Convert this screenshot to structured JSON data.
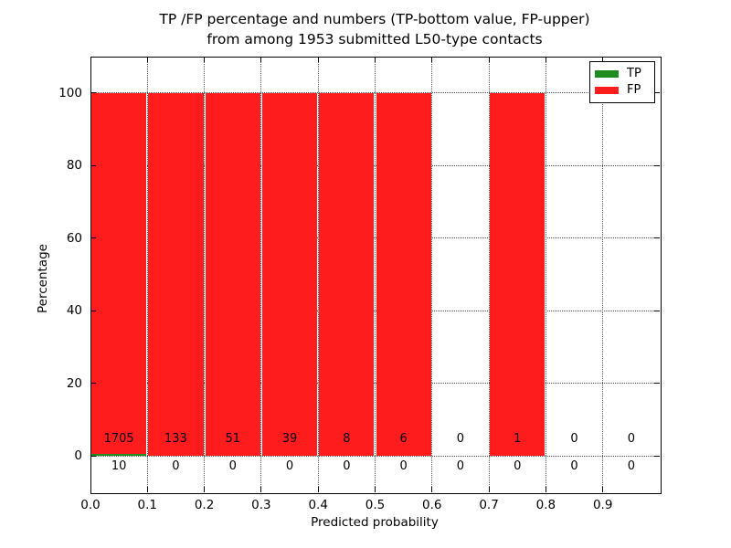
{
  "chart_data": {
    "type": "bar",
    "title_line1": "TP /FP percentage and numbers (TP-bottom value, FP-upper)",
    "title_line2": "from among 1953 submitted L50-type contacts",
    "xlabel": "Predicted probability",
    "ylabel": "Percentage",
    "xlim": [
      0.0,
      1.0
    ],
    "ylim": [
      -10,
      110
    ],
    "xtick_labels": [
      "0.0",
      "0.1",
      "0.2",
      "0.3",
      "0.4",
      "0.5",
      "0.6",
      "0.7",
      "0.8",
      "0.9"
    ],
    "ytick_values": [
      0,
      20,
      40,
      60,
      80,
      100
    ],
    "grid": "dotted",
    "legend_position": "upper-right",
    "background_color": "#ffffff",
    "series": [
      {
        "name": "TP",
        "color": "#1e8c1e"
      },
      {
        "name": "FP",
        "color": "#ff1c1c"
      }
    ],
    "bins": [
      {
        "x_start": 0.0,
        "x_end": 0.1,
        "tp": 10,
        "fp": 1705
      },
      {
        "x_start": 0.1,
        "x_end": 0.2,
        "tp": 0,
        "fp": 133
      },
      {
        "x_start": 0.2,
        "x_end": 0.3,
        "tp": 0,
        "fp": 51
      },
      {
        "x_start": 0.3,
        "x_end": 0.4,
        "tp": 0,
        "fp": 39
      },
      {
        "x_start": 0.4,
        "x_end": 0.5,
        "tp": 0,
        "fp": 8
      },
      {
        "x_start": 0.5,
        "x_end": 0.6,
        "tp": 0,
        "fp": 6
      },
      {
        "x_start": 0.6,
        "x_end": 0.7,
        "tp": 0,
        "fp": 0
      },
      {
        "x_start": 0.7,
        "x_end": 0.8,
        "tp": 0,
        "fp": 1
      },
      {
        "x_start": 0.8,
        "x_end": 0.9,
        "tp": 0,
        "fp": 0
      },
      {
        "x_start": 0.9,
        "x_end": 1.0,
        "tp": 0,
        "fp": 0
      }
    ]
  }
}
